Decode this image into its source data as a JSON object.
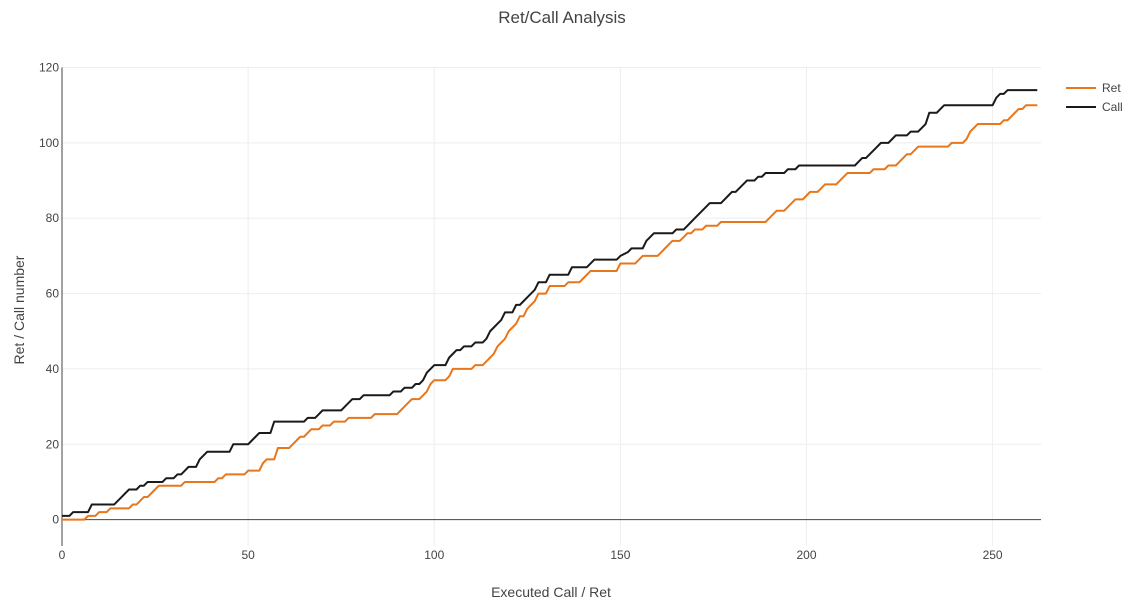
{
  "chart_data": {
    "type": "line",
    "title": "Ret/Call Analysis",
    "xlabel": "Executed Call / Ret",
    "ylabel": "Ret / Call number",
    "xlim": [
      0,
      263
    ],
    "ylim": [
      -7,
      122
    ],
    "xticks": [
      0,
      50,
      100,
      150,
      200,
      250
    ],
    "yticks": [
      0,
      20,
      40,
      60,
      80,
      100,
      120
    ],
    "grid": true,
    "legend_position": "top-right",
    "series": [
      {
        "name": "Ret",
        "color": "#e8761a",
        "points": [
          [
            0,
            0
          ],
          [
            6,
            0
          ],
          [
            7,
            1
          ],
          [
            9,
            1
          ],
          [
            10,
            2
          ],
          [
            12,
            2
          ],
          [
            13,
            3
          ],
          [
            18,
            3
          ],
          [
            19,
            4
          ],
          [
            20,
            4
          ],
          [
            21,
            5
          ],
          [
            22,
            6
          ],
          [
            23,
            6
          ],
          [
            24,
            7
          ],
          [
            25,
            8
          ],
          [
            26,
            9
          ],
          [
            32,
            9
          ],
          [
            33,
            10
          ],
          [
            41,
            10
          ],
          [
            42,
            11
          ],
          [
            43,
            11
          ],
          [
            44,
            12
          ],
          [
            49,
            12
          ],
          [
            50,
            13
          ],
          [
            53,
            13
          ],
          [
            54,
            15
          ],
          [
            55,
            16
          ],
          [
            57,
            16
          ],
          [
            58,
            19
          ],
          [
            61,
            19
          ],
          [
            62,
            20
          ],
          [
            63,
            21
          ],
          [
            64,
            22
          ],
          [
            65,
            22
          ],
          [
            66,
            23
          ],
          [
            67,
            24
          ],
          [
            69,
            24
          ],
          [
            70,
            25
          ],
          [
            72,
            25
          ],
          [
            73,
            26
          ],
          [
            76,
            26
          ],
          [
            77,
            27
          ],
          [
            83,
            27
          ],
          [
            84,
            28
          ],
          [
            90,
            28
          ],
          [
            91,
            29
          ],
          [
            92,
            30
          ],
          [
            93,
            31
          ],
          [
            94,
            32
          ],
          [
            96,
            32
          ],
          [
            97,
            33
          ],
          [
            98,
            34
          ],
          [
            99,
            36
          ],
          [
            100,
            37
          ],
          [
            103,
            37
          ],
          [
            104,
            38
          ],
          [
            105,
            40
          ],
          [
            110,
            40
          ],
          [
            111,
            41
          ],
          [
            113,
            41
          ],
          [
            114,
            42
          ],
          [
            115,
            43
          ],
          [
            116,
            44
          ],
          [
            117,
            46
          ],
          [
            118,
            47
          ],
          [
            119,
            48
          ],
          [
            120,
            50
          ],
          [
            121,
            51
          ],
          [
            122,
            52
          ],
          [
            123,
            54
          ],
          [
            124,
            54
          ],
          [
            125,
            56
          ],
          [
            126,
            57
          ],
          [
            127,
            58
          ],
          [
            128,
            60
          ],
          [
            130,
            60
          ],
          [
            131,
            62
          ],
          [
            135,
            62
          ],
          [
            136,
            63
          ],
          [
            139,
            63
          ],
          [
            140,
            64
          ],
          [
            141,
            65
          ],
          [
            142,
            66
          ],
          [
            149,
            66
          ],
          [
            150,
            68
          ],
          [
            154,
            68
          ],
          [
            155,
            69
          ],
          [
            156,
            70
          ],
          [
            160,
            70
          ],
          [
            161,
            71
          ],
          [
            162,
            72
          ],
          [
            163,
            73
          ],
          [
            164,
            74
          ],
          [
            166,
            74
          ],
          [
            167,
            75
          ],
          [
            168,
            76
          ],
          [
            169,
            76
          ],
          [
            170,
            77
          ],
          [
            172,
            77
          ],
          [
            173,
            78
          ],
          [
            176,
            78
          ],
          [
            177,
            79
          ],
          [
            189,
            79
          ],
          [
            190,
            80
          ],
          [
            191,
            81
          ],
          [
            192,
            82
          ],
          [
            194,
            82
          ],
          [
            195,
            83
          ],
          [
            196,
            84
          ],
          [
            197,
            85
          ],
          [
            199,
            85
          ],
          [
            200,
            86
          ],
          [
            201,
            87
          ],
          [
            203,
            87
          ],
          [
            204,
            88
          ],
          [
            205,
            89
          ],
          [
            208,
            89
          ],
          [
            209,
            90
          ],
          [
            210,
            91
          ],
          [
            211,
            92
          ],
          [
            217,
            92
          ],
          [
            218,
            93
          ],
          [
            221,
            93
          ],
          [
            222,
            94
          ],
          [
            224,
            94
          ],
          [
            225,
            95
          ],
          [
            226,
            96
          ],
          [
            227,
            97
          ],
          [
            228,
            97
          ],
          [
            229,
            98
          ],
          [
            230,
            99
          ],
          [
            238,
            99
          ],
          [
            239,
            100
          ],
          [
            242,
            100
          ],
          [
            243,
            101
          ],
          [
            244,
            103
          ],
          [
            245,
            104
          ],
          [
            246,
            105
          ],
          [
            252,
            105
          ],
          [
            253,
            106
          ],
          [
            254,
            106
          ],
          [
            255,
            107
          ],
          [
            256,
            108
          ],
          [
            257,
            109
          ],
          [
            258,
            109
          ],
          [
            259,
            110
          ],
          [
            262,
            110
          ]
        ]
      },
      {
        "name": "Call",
        "color": "#1a1a1a",
        "points": [
          [
            0,
            1
          ],
          [
            2,
            1
          ],
          [
            3,
            2
          ],
          [
            7,
            2
          ],
          [
            8,
            4
          ],
          [
            14,
            4
          ],
          [
            15,
            5
          ],
          [
            16,
            6
          ],
          [
            17,
            7
          ],
          [
            18,
            8
          ],
          [
            20,
            8
          ],
          [
            21,
            9
          ],
          [
            22,
            9
          ],
          [
            23,
            10
          ],
          [
            27,
            10
          ],
          [
            28,
            11
          ],
          [
            30,
            11
          ],
          [
            31,
            12
          ],
          [
            32,
            12
          ],
          [
            33,
            13
          ],
          [
            34,
            14
          ],
          [
            36,
            14
          ],
          [
            37,
            16
          ],
          [
            38,
            17
          ],
          [
            39,
            18
          ],
          [
            45,
            18
          ],
          [
            46,
            20
          ],
          [
            50,
            20
          ],
          [
            51,
            21
          ],
          [
            52,
            22
          ],
          [
            53,
            23
          ],
          [
            56,
            23
          ],
          [
            57,
            26
          ],
          [
            65,
            26
          ],
          [
            66,
            27
          ],
          [
            68,
            27
          ],
          [
            69,
            28
          ],
          [
            70,
            29
          ],
          [
            75,
            29
          ],
          [
            76,
            30
          ],
          [
            77,
            31
          ],
          [
            78,
            32
          ],
          [
            80,
            32
          ],
          [
            81,
            33
          ],
          [
            88,
            33
          ],
          [
            89,
            34
          ],
          [
            91,
            34
          ],
          [
            92,
            35
          ],
          [
            94,
            35
          ],
          [
            95,
            36
          ],
          [
            96,
            36
          ],
          [
            97,
            37
          ],
          [
            98,
            39
          ],
          [
            100,
            41
          ],
          [
            103,
            41
          ],
          [
            104,
            43
          ],
          [
            105,
            44
          ],
          [
            106,
            45
          ],
          [
            107,
            45
          ],
          [
            108,
            46
          ],
          [
            110,
            46
          ],
          [
            111,
            47
          ],
          [
            113,
            47
          ],
          [
            114,
            48
          ],
          [
            115,
            50
          ],
          [
            116,
            51
          ],
          [
            117,
            52
          ],
          [
            118,
            53
          ],
          [
            119,
            55
          ],
          [
            121,
            55
          ],
          [
            122,
            57
          ],
          [
            123,
            57
          ],
          [
            124,
            58
          ],
          [
            125,
            59
          ],
          [
            126,
            60
          ],
          [
            127,
            61
          ],
          [
            128,
            63
          ],
          [
            130,
            63
          ],
          [
            131,
            65
          ],
          [
            136,
            65
          ],
          [
            137,
            67
          ],
          [
            141,
            67
          ],
          [
            142,
            68
          ],
          [
            143,
            69
          ],
          [
            149,
            69
          ],
          [
            150,
            70
          ],
          [
            152,
            71
          ],
          [
            153,
            72
          ],
          [
            156,
            72
          ],
          [
            157,
            74
          ],
          [
            158,
            75
          ],
          [
            159,
            76
          ],
          [
            164,
            76
          ],
          [
            165,
            77
          ],
          [
            167,
            77
          ],
          [
            168,
            78
          ],
          [
            169,
            79
          ],
          [
            170,
            80
          ],
          [
            171,
            81
          ],
          [
            172,
            82
          ],
          [
            173,
            83
          ],
          [
            174,
            84
          ],
          [
            177,
            84
          ],
          [
            178,
            85
          ],
          [
            179,
            86
          ],
          [
            180,
            87
          ],
          [
            181,
            87
          ],
          [
            182,
            88
          ],
          [
            183,
            89
          ],
          [
            184,
            90
          ],
          [
            186,
            90
          ],
          [
            187,
            91
          ],
          [
            188,
            91
          ],
          [
            189,
            92
          ],
          [
            194,
            92
          ],
          [
            195,
            93
          ],
          [
            197,
            93
          ],
          [
            198,
            94
          ],
          [
            213,
            94
          ],
          [
            214,
            95
          ],
          [
            215,
            96
          ],
          [
            216,
            96
          ],
          [
            217,
            97
          ],
          [
            218,
            98
          ],
          [
            219,
            99
          ],
          [
            220,
            100
          ],
          [
            222,
            100
          ],
          [
            223,
            101
          ],
          [
            224,
            102
          ],
          [
            227,
            102
          ],
          [
            228,
            103
          ],
          [
            230,
            103
          ],
          [
            231,
            104
          ],
          [
            232,
            105
          ],
          [
            233,
            108
          ],
          [
            235,
            108
          ],
          [
            236,
            109
          ],
          [
            237,
            110
          ],
          [
            250,
            110
          ],
          [
            251,
            112
          ],
          [
            252,
            113
          ],
          [
            253,
            113
          ],
          [
            254,
            114
          ],
          [
            262,
            114
          ]
        ]
      }
    ]
  }
}
